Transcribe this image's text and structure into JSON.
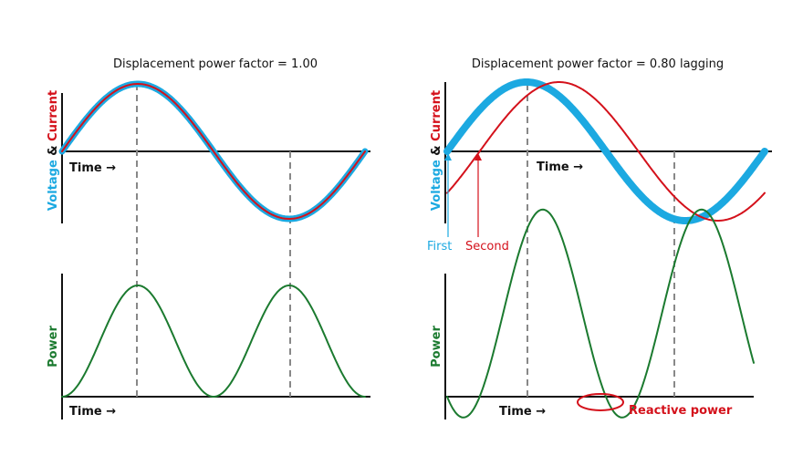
{
  "left": {
    "title": "Displacement power factor = 1.00",
    "voltage_label": "Voltage",
    "and_label": "&",
    "current_label": "Current",
    "time_label": "Time →",
    "power_label": "Power",
    "power_time_label": "Time →"
  },
  "right": {
    "title": "Displacement power factor = 0.80 lagging",
    "voltage_label": "Voltage",
    "and_label": "&",
    "current_label": "Current",
    "time_label": "Time →",
    "power_label": "Power",
    "power_time_label": "Time →",
    "first_label": "First",
    "second_label": "Second",
    "reactive_label": "Reactive power"
  }
}
